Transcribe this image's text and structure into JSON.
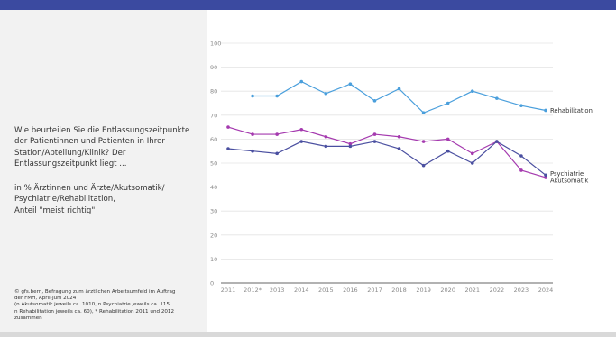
{
  "panel": {
    "question": "Wie beurteilen Sie die Entlassungszeitpunkte der Patientinnen und Patienten in Ihrer Station/Abteilung/Klinik? Der Entlassungszeitpunkt liegt ...",
    "subtitle_lines": [
      "in % Ärztinnen und Ärzte/Akutsomatik/",
      "Psychiatrie/Rehabilitation,",
      "Anteil \"meist richtig\""
    ],
    "source_lines": [
      "© gfs.bern, Befragung zum ärztlichen Arbeitsumfeld im Auftrag",
      "der FMH, April-Juni 2024",
      "(n Akutsomatik jeweils ca. 1010, n Psychiatrie jeweils ca. 115,",
      "n Rehabilitation jeweils ca. 60), * Rehabilitation 2011 und 2012",
      "zusammen"
    ]
  },
  "colors": {
    "header_bar": "#3b4aa0",
    "left_panel": "#f2f2f2",
    "rehabilitation": "#4a9fdc",
    "psychiatrie": "#a53aaf",
    "akutsomatik": "#4a4fa0"
  },
  "chart_data": {
    "type": "line",
    "x": [
      "2011",
      "2012*",
      "2013",
      "2014",
      "2015",
      "2016",
      "2017",
      "2018",
      "2019",
      "2020",
      "2021",
      "2022",
      "2023",
      "2024"
    ],
    "ylim": [
      0,
      100
    ],
    "yticks": [
      0,
      10,
      20,
      30,
      40,
      50,
      60,
      70,
      80,
      90,
      100
    ],
    "grid": true,
    "series": [
      {
        "name": "Rehabilitation",
        "color": "#4a9fdc",
        "values": [
          null,
          78,
          78,
          84,
          79,
          83,
          76,
          81,
          71,
          75,
          80,
          77,
          74,
          72
        ]
      },
      {
        "name": "Psychiatrie",
        "color": "#a53aaf",
        "values": [
          65,
          62,
          62,
          64,
          61,
          58,
          62,
          61,
          59,
          60,
          54,
          59,
          47,
          44
        ]
      },
      {
        "name": "Akutsomatik",
        "color": "#4a4fa0",
        "values": [
          56,
          55,
          54,
          59,
          57,
          57,
          59,
          56,
          49,
          55,
          50,
          59,
          53,
          45
        ]
      }
    ]
  }
}
